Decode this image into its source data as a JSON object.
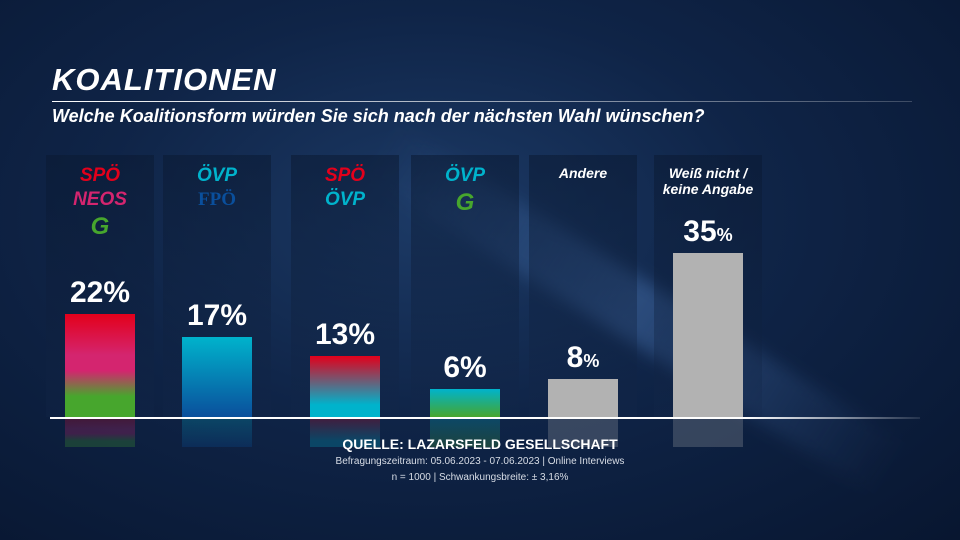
{
  "header": {
    "title": "KOALITIONEN",
    "subtitle": "Welche Koalitionsform würden Sie sich nach der nächsten Wahl wünschen?"
  },
  "chart_data": {
    "type": "bar",
    "categories": [
      "SPÖ / NEOS / Grüne",
      "ÖVP / FPÖ",
      "SPÖ / ÖVP",
      "ÖVP / Grüne",
      "Andere",
      "Weiß nicht / keine Angabe"
    ],
    "values": [
      22,
      17,
      13,
      6,
      8,
      35
    ],
    "value_labels": [
      "22",
      "17",
      "13",
      "6",
      "8",
      "35"
    ],
    "unit": "%",
    "ylim": [
      0,
      35
    ],
    "grid": false,
    "party_labels": [
      [
        "SPÖ",
        "NEOS",
        "G"
      ],
      [
        "ÖVP",
        "FPÖ"
      ],
      [
        "SPÖ",
        "ÖVP"
      ],
      [
        "ÖVP",
        "G"
      ],
      [
        "Andere"
      ],
      [
        "Weiß nicht /",
        "keine Angabe"
      ]
    ],
    "colors": {
      "SPÖ": "#e3001b",
      "NEOS": "#d4256f",
      "Grüne": "#47a62d",
      "ÖVP": "#00b3cc",
      "FPÖ": "#0a4f9c",
      "other": "#b2b2b2"
    }
  },
  "footer": {
    "source": "QUELLE:  LAZARSFELD GESELLSCHAFT",
    "period": "Befragungszeitraum: 05.06.2023 - 07.06.2023 | Online Interviews",
    "sample": "n = 1000 | Schwankungsbreite: ± 3,16%"
  }
}
